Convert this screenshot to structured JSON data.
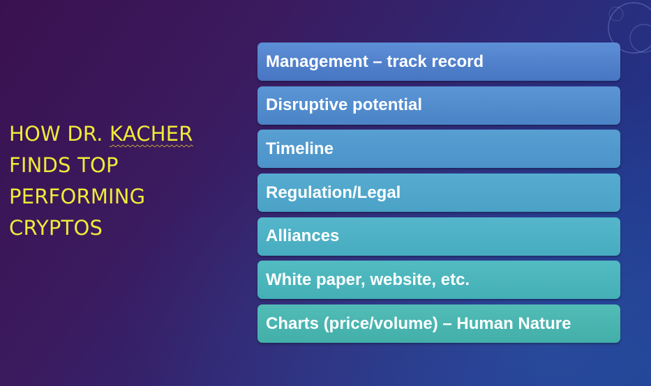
{
  "slide": {
    "title_lines": [
      {
        "pre": "HOW DR. ",
        "flagged": "KACHER"
      },
      {
        "pre": "FINDS TOP",
        "flagged": ""
      },
      {
        "pre": "PERFORMING",
        "flagged": ""
      },
      {
        "pre": "CRYPTOS",
        "flagged": ""
      }
    ],
    "items": [
      "Management – track record",
      "Disruptive potential",
      "Timeline",
      "Regulation/Legal",
      "Alliances",
      "White paper, website, etc.",
      "Charts (price/volume) – Human Nature"
    ]
  },
  "colors": {
    "title_text": "#f0ea3a",
    "item_text": "#ffffff",
    "background_start": "#3a1150",
    "background_end": "#1c3a8c"
  },
  "icons": [
    "circle-ornament-icon"
  ]
}
